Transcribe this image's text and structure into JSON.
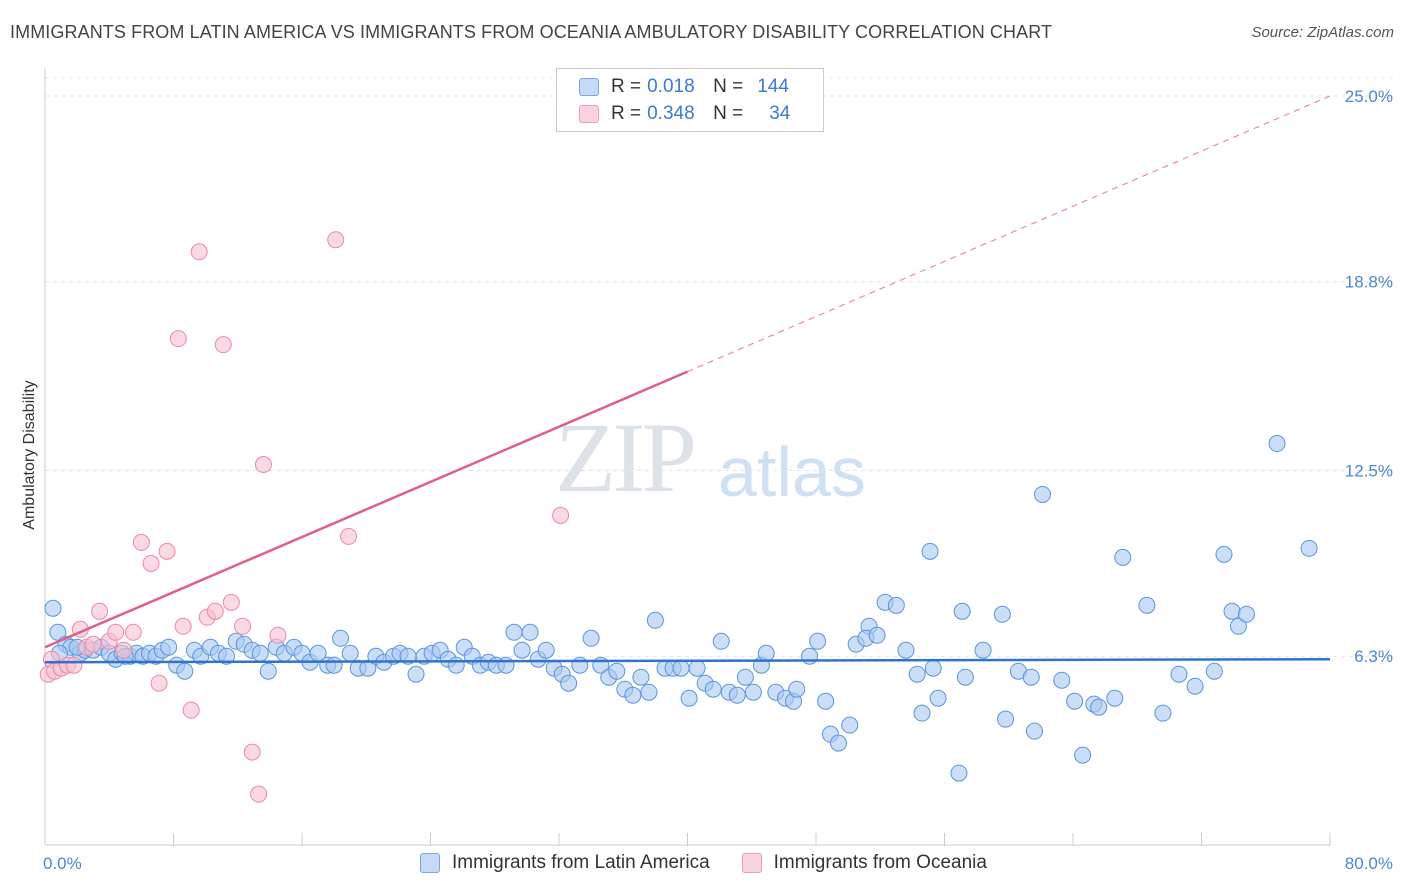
{
  "title": "IMMIGRANTS FROM LATIN AMERICA VS IMMIGRANTS FROM OCEANIA AMBULATORY DISABILITY CORRELATION CHART",
  "source": "Source: ZipAtlas.com",
  "watermark": {
    "zip": "ZIP",
    "atlas": "atlas"
  },
  "legend": {
    "rows": [
      {
        "r_label": "R =",
        "r_value": "0.018",
        "n_label": "N =",
        "n_value": "144",
        "color": "#a9c8f2"
      },
      {
        "r_label": "R =",
        "r_value": "0.348",
        "n_label": "N =",
        "n_value": "34",
        "color": "#f8bfcf"
      }
    ]
  },
  "bottom_legend": {
    "series1": "Immigrants from Latin America",
    "series2": "Immigrants from Oceania"
  },
  "colors": {
    "blue_fill": "#a9c8f2",
    "blue_stroke": "#5b95dc",
    "blue_line": "#2f73cc",
    "pink_fill": "#f8bfcf",
    "pink_stroke": "#e98aa6",
    "pink_line": "#e05f8a",
    "grid": "#e3e3e3",
    "tick_text": "#4a86d8"
  },
  "chart_data": {
    "type": "scatter",
    "title": "IMMIGRANTS FROM LATIN AMERICA VS IMMIGRANTS FROM OCEANIA AMBULATORY DISABILITY CORRELATION CHART",
    "xlabel": "",
    "ylabel": "Ambulatory Disability",
    "xlim": [
      0,
      80
    ],
    "ylim": [
      0,
      25.6
    ],
    "x_tick_labels": [
      "0.0%",
      "80.0%"
    ],
    "y_ticks": [
      6.3,
      12.5,
      18.8,
      25.0
    ],
    "y_tick_labels": [
      "6.3%",
      "12.5%",
      "18.8%",
      "25.0%"
    ],
    "grid": true,
    "legend_position": "top-center",
    "series": [
      {
        "name": "Immigrants from Latin America",
        "color": "#a9c8f2",
        "trend": {
          "x": [
            0,
            80
          ],
          "y": [
            6.1,
            6.2
          ]
        },
        "points": [
          [
            0.5,
            7.9
          ],
          [
            0.8,
            7.1
          ],
          [
            1.3,
            6.7
          ],
          [
            1.6,
            6.6
          ],
          [
            2.2,
            6.4
          ],
          [
            2.5,
            6.5
          ],
          [
            3.0,
            6.5
          ],
          [
            3.5,
            6.6
          ],
          [
            4.0,
            6.4
          ],
          [
            4.4,
            6.2
          ],
          [
            4.8,
            6.4
          ],
          [
            5.3,
            6.3
          ],
          [
            5.7,
            6.4
          ],
          [
            6.1,
            6.3
          ],
          [
            6.5,
            6.4
          ],
          [
            6.9,
            6.3
          ],
          [
            7.3,
            6.5
          ],
          [
            7.7,
            6.6
          ],
          [
            8.2,
            6.0
          ],
          [
            8.7,
            5.8
          ],
          [
            9.3,
            6.5
          ],
          [
            9.7,
            6.3
          ],
          [
            10.3,
            6.6
          ],
          [
            10.8,
            6.4
          ],
          [
            11.3,
            6.3
          ],
          [
            11.9,
            6.8
          ],
          [
            12.4,
            6.7
          ],
          [
            12.9,
            6.5
          ],
          [
            13.4,
            6.4
          ],
          [
            13.9,
            5.8
          ],
          [
            14.4,
            6.6
          ],
          [
            14.9,
            6.4
          ],
          [
            15.5,
            6.6
          ],
          [
            16.0,
            6.4
          ],
          [
            16.5,
            6.1
          ],
          [
            17.0,
            6.4
          ],
          [
            17.6,
            6.0
          ],
          [
            18.0,
            6.0
          ],
          [
            18.4,
            6.9
          ],
          [
            19.0,
            6.4
          ],
          [
            19.5,
            5.9
          ],
          [
            20.1,
            5.9
          ],
          [
            20.6,
            6.3
          ],
          [
            21.1,
            6.1
          ],
          [
            21.7,
            6.3
          ],
          [
            22.1,
            6.4
          ],
          [
            22.6,
            6.3
          ],
          [
            23.1,
            5.7
          ],
          [
            23.6,
            6.3
          ],
          [
            24.1,
            6.4
          ],
          [
            24.6,
            6.5
          ],
          [
            25.1,
            6.2
          ],
          [
            25.6,
            6.0
          ],
          [
            26.1,
            6.6
          ],
          [
            26.6,
            6.3
          ],
          [
            27.1,
            6.0
          ],
          [
            27.6,
            6.1
          ],
          [
            28.1,
            6.0
          ],
          [
            28.7,
            6.0
          ],
          [
            29.2,
            7.1
          ],
          [
            29.7,
            6.5
          ],
          [
            30.2,
            7.1
          ],
          [
            30.7,
            6.2
          ],
          [
            31.2,
            6.5
          ],
          [
            31.7,
            5.9
          ],
          [
            32.2,
            5.7
          ],
          [
            32.6,
            5.4
          ],
          [
            33.3,
            6.0
          ],
          [
            34.0,
            6.9
          ],
          [
            34.6,
            6.0
          ],
          [
            35.1,
            5.6
          ],
          [
            35.6,
            5.8
          ],
          [
            36.1,
            5.2
          ],
          [
            36.6,
            5.0
          ],
          [
            37.1,
            5.6
          ],
          [
            37.6,
            5.1
          ],
          [
            38.0,
            7.5
          ],
          [
            38.6,
            5.9
          ],
          [
            39.1,
            5.9
          ],
          [
            39.6,
            5.9
          ],
          [
            40.1,
            4.9
          ],
          [
            40.6,
            5.9
          ],
          [
            41.1,
            5.4
          ],
          [
            41.6,
            5.2
          ],
          [
            42.1,
            6.8
          ],
          [
            42.6,
            5.1
          ],
          [
            43.1,
            5.0
          ],
          [
            43.6,
            5.6
          ],
          [
            44.1,
            5.1
          ],
          [
            44.6,
            6.0
          ],
          [
            44.9,
            6.4
          ],
          [
            45.5,
            5.1
          ],
          [
            46.1,
            4.9
          ],
          [
            46.6,
            4.8
          ],
          [
            46.8,
            5.2
          ],
          [
            47.6,
            6.3
          ],
          [
            48.1,
            6.8
          ],
          [
            48.6,
            4.8
          ],
          [
            48.9,
            3.7
          ],
          [
            49.4,
            3.4
          ],
          [
            50.1,
            4.0
          ],
          [
            50.5,
            6.7
          ],
          [
            51.3,
            7.3
          ],
          [
            51.1,
            6.9
          ],
          [
            51.8,
            7.0
          ],
          [
            52.3,
            8.1
          ],
          [
            53.0,
            8.0
          ],
          [
            53.6,
            6.5
          ],
          [
            54.3,
            5.7
          ],
          [
            54.6,
            4.4
          ],
          [
            55.1,
            9.8
          ],
          [
            55.3,
            5.9
          ],
          [
            55.6,
            4.9
          ],
          [
            56.9,
            2.4
          ],
          [
            57.1,
            7.8
          ],
          [
            57.3,
            5.6
          ],
          [
            58.4,
            6.5
          ],
          [
            59.6,
            7.7
          ],
          [
            59.8,
            4.2
          ],
          [
            60.6,
            5.8
          ],
          [
            61.4,
            5.6
          ],
          [
            61.6,
            3.8
          ],
          [
            62.1,
            11.7
          ],
          [
            63.3,
            5.5
          ],
          [
            64.1,
            4.8
          ],
          [
            64.6,
            3.0
          ],
          [
            65.3,
            4.7
          ],
          [
            65.6,
            4.6
          ],
          [
            66.6,
            4.9
          ],
          [
            67.1,
            9.6
          ],
          [
            68.6,
            8.0
          ],
          [
            69.6,
            4.4
          ],
          [
            70.6,
            5.7
          ],
          [
            71.6,
            5.3
          ],
          [
            72.8,
            5.8
          ],
          [
            73.4,
            9.7
          ],
          [
            73.9,
            7.8
          ],
          [
            74.3,
            7.3
          ],
          [
            74.8,
            7.7
          ],
          [
            76.7,
            13.4
          ],
          [
            78.7,
            9.9
          ],
          [
            0.9,
            6.4
          ],
          [
            2.0,
            6.6
          ],
          [
            5.0,
            6.3
          ]
        ]
      },
      {
        "name": "Immigrants from Oceania",
        "color": "#f8bfcf",
        "trend": {
          "x": [
            0,
            40
          ],
          "y": [
            6.6,
            15.8
          ]
        },
        "trend_extension": {
          "x": [
            40,
            80
          ],
          "y": [
            15.8,
            25.0
          ]
        },
        "points": [
          [
            0.2,
            5.7
          ],
          [
            0.4,
            6.2
          ],
          [
            0.6,
            5.8
          ],
          [
            1.0,
            5.9
          ],
          [
            1.4,
            6.0
          ],
          [
            1.8,
            6.0
          ],
          [
            2.2,
            7.2
          ],
          [
            2.6,
            6.6
          ],
          [
            3.0,
            6.7
          ],
          [
            3.4,
            7.8
          ],
          [
            4.0,
            6.8
          ],
          [
            4.4,
            7.1
          ],
          [
            4.9,
            6.5
          ],
          [
            5.5,
            7.1
          ],
          [
            6.0,
            10.1
          ],
          [
            6.6,
            9.4
          ],
          [
            7.1,
            5.4
          ],
          [
            7.6,
            9.8
          ],
          [
            8.3,
            16.9
          ],
          [
            8.6,
            7.3
          ],
          [
            9.1,
            4.5
          ],
          [
            9.6,
            19.8
          ],
          [
            10.1,
            7.6
          ],
          [
            10.6,
            7.8
          ],
          [
            11.1,
            16.7
          ],
          [
            11.6,
            8.1
          ],
          [
            12.3,
            7.3
          ],
          [
            12.9,
            3.1
          ],
          [
            13.3,
            1.7
          ],
          [
            13.6,
            12.7
          ],
          [
            14.5,
            7.0
          ],
          [
            18.1,
            20.2
          ],
          [
            18.9,
            10.3
          ],
          [
            32.1,
            11.0
          ]
        ]
      }
    ]
  }
}
